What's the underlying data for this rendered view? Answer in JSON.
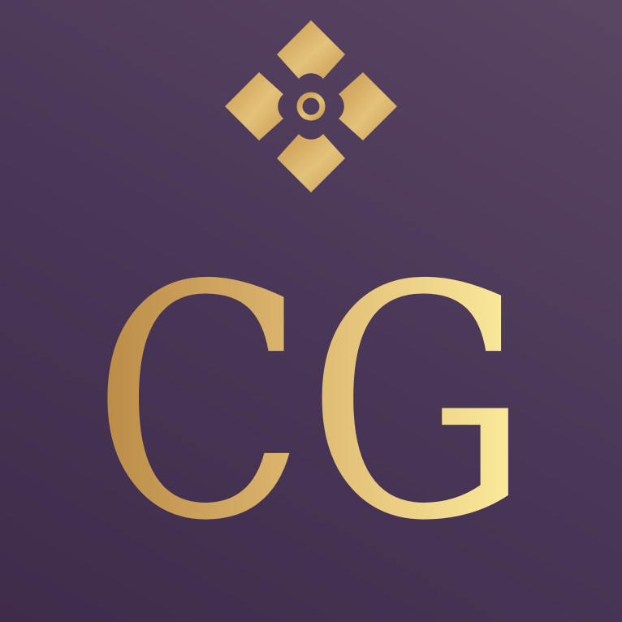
{
  "logo": {
    "monogram": "CG",
    "ornament_icon": "four-petal-diamond-icon",
    "colors": {
      "background_dark": "#3f2b4a",
      "background_light": "#5a4663",
      "gold_dark": "#b98a45",
      "gold_mid": "#dcb56e",
      "gold_light": "#fdeea0"
    }
  }
}
